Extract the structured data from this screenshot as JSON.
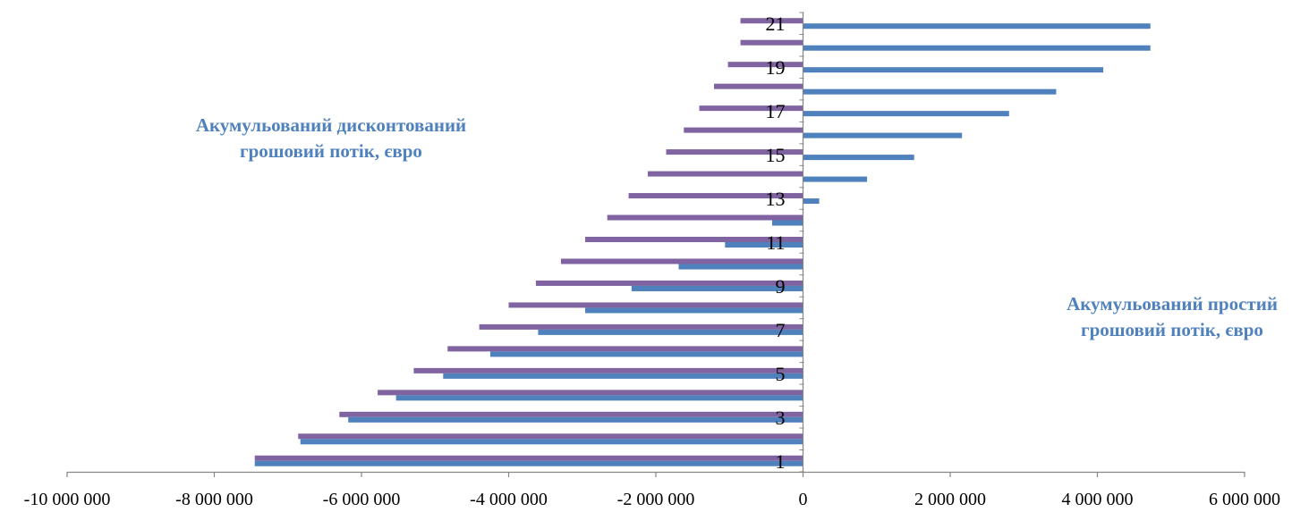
{
  "chart_data": {
    "type": "bar",
    "orientation": "horizontal",
    "categories": [
      "1",
      "2",
      "3",
      "4",
      "5",
      "6",
      "7",
      "8",
      "9",
      "10",
      "11",
      "12",
      "13",
      "14",
      "15",
      "16",
      "17",
      "18",
      "19",
      "20",
      "21"
    ],
    "category_tick_labels": [
      "1",
      "",
      "3",
      "",
      "5",
      "",
      "7",
      "",
      "9",
      "",
      "11",
      "",
      "13",
      "",
      "15",
      "",
      "17",
      "",
      "19",
      "",
      "21"
    ],
    "series": [
      {
        "name": "Акумульований простий грошовий потік, євро",
        "color": "#4F81BD",
        "values": [
          -7450000,
          -6830000,
          -6180000,
          -5530000,
          -4890000,
          -4250000,
          -3600000,
          -2960000,
          -2330000,
          -1690000,
          -1060000,
          -420000,
          220000,
          870000,
          1510000,
          2160000,
          2800000,
          3440000,
          4080000,
          4720000,
          4720000
        ]
      },
      {
        "name": "Акумульований дисконтований грошовий потік, євро",
        "color": "#8064A2",
        "values": [
          -7450000,
          -6860000,
          -6300000,
          -5780000,
          -5290000,
          -4830000,
          -4400000,
          -4000000,
          -3630000,
          -3290000,
          -2960000,
          -2660000,
          -2370000,
          -2110000,
          -1860000,
          -1620000,
          -1410000,
          -1210000,
          -1020000,
          -850000,
          -850000
        ]
      }
    ],
    "x_ticks": [
      "-10 000 000",
      "-8 000 000",
      "-6 000 000",
      "-4 000 000",
      "-2 000 000",
      "0",
      "2 000 000",
      "4 000 000",
      "6 000 000"
    ],
    "xlim": [
      -10000000,
      6000000
    ],
    "legend": "none",
    "grid": false
  },
  "annotations": {
    "discounted_label": "Акумульований дисконтований\nгрошовий потік, євро",
    "simple_label": "Акумульований простий\nгрошовий потік, євро",
    "discounted_color": "#4F81BD",
    "simple_color": "#4F81BD"
  }
}
